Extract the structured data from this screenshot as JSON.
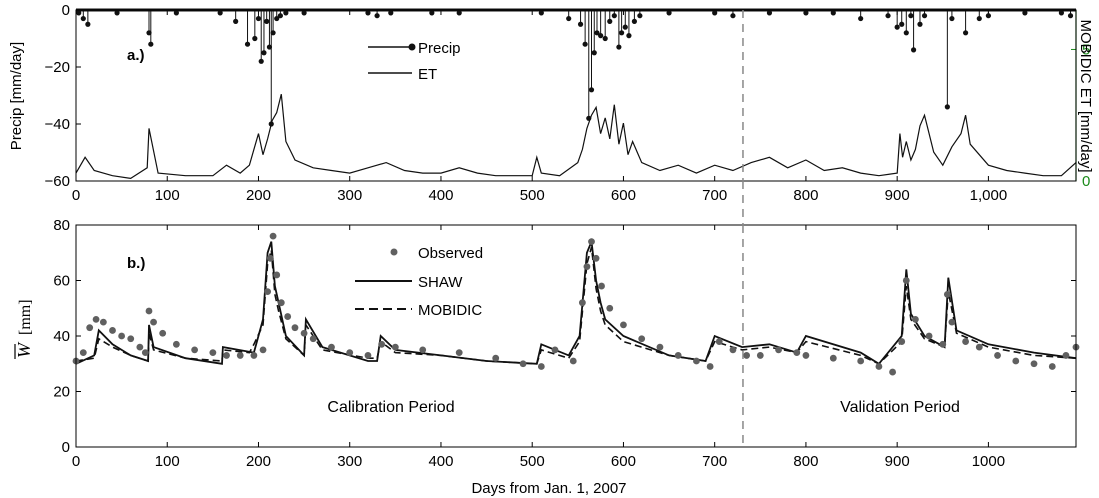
{
  "colors": {
    "axis": "#000000",
    "line": "#111111",
    "observed": "#606060",
    "right_axis": "#1a8a1a",
    "divider": "#888888"
  },
  "chart_data": [
    {
      "panel": "a.)",
      "type": "line",
      "xlim": [
        0,
        1096
      ],
      "ylim_left": [
        -60,
        0
      ],
      "ylim_right": [
        0,
        6.5
      ],
      "ylabel_left": "Precip [mm/day]",
      "ylabel_right": "MOBIDIC ET [mm/day]",
      "x_ticks": [
        0,
        100,
        200,
        300,
        400,
        500,
        600,
        700,
        800,
        900,
        1000
      ],
      "x_tick_labels": [
        "0",
        "100",
        "200",
        "300",
        "400",
        "500",
        "600",
        "700",
        "800",
        "900",
        "1,000"
      ],
      "y_ticks_left": [
        0,
        -20,
        -40,
        -60
      ],
      "y_tick_labels_left": [
        "0",
        "−20",
        "−40",
        "−60"
      ],
      "y_ticks_right": [
        0,
        5
      ],
      "y_tick_labels_right": [
        "0",
        "5"
      ],
      "legend": [
        {
          "label": "Precip",
          "marker": "dot-line"
        },
        {
          "label": "ET",
          "marker": "line"
        }
      ],
      "series": [
        {
          "name": "Precip",
          "axis": "left",
          "x": [
            3,
            8,
            13,
            45,
            80,
            82,
            110,
            158,
            175,
            188,
            196,
            200,
            203,
            206,
            209,
            212,
            214,
            216,
            220,
            224,
            230,
            250,
            320,
            330,
            345,
            390,
            420,
            510,
            540,
            553,
            558,
            562,
            565,
            568,
            571,
            575,
            580,
            585,
            590,
            595,
            598,
            602,
            606,
            612,
            618,
            650,
            700,
            720,
            760,
            800,
            830,
            860,
            890,
            900,
            905,
            910,
            915,
            918,
            925,
            930,
            955,
            960,
            975,
            990,
            1000,
            1040,
            1080,
            1090
          ],
          "y": [
            -1,
            -3,
            -5,
            -1,
            -8,
            -12,
            -1,
            -1,
            -4,
            -12,
            -10,
            -3,
            -18,
            -15,
            -4,
            -13,
            -40,
            -8,
            -3,
            -2,
            -1,
            -1,
            -1,
            -2,
            -1,
            -1,
            -1,
            -1,
            -3,
            -5,
            -12,
            -38,
            -28,
            -15,
            -8,
            -9,
            -10,
            -4,
            -2,
            -13,
            -8,
            -6,
            -9,
            -4,
            -2,
            -1,
            -1,
            -2,
            -1,
            -1,
            -1,
            -3,
            -2,
            -6,
            -5,
            -8,
            -2,
            -14,
            -5,
            -2,
            -34,
            -3,
            -8,
            -3,
            -2,
            -1,
            -1,
            -2
          ]
        },
        {
          "name": "ET",
          "axis": "right",
          "x": [
            0,
            10,
            20,
            40,
            60,
            78,
            80,
            90,
            120,
            150,
            165,
            180,
            190,
            195,
            200,
            205,
            210,
            215,
            220,
            225,
            230,
            240,
            260,
            280,
            300,
            320,
            340,
            360,
            380,
            400,
            420,
            440,
            460,
            480,
            500,
            505,
            510,
            530,
            550,
            555,
            560,
            565,
            570,
            575,
            580,
            585,
            590,
            595,
            600,
            605,
            610,
            620,
            640,
            660,
            680,
            700,
            720,
            740,
            760,
            780,
            800,
            820,
            840,
            860,
            880,
            900,
            903,
            906,
            910,
            915,
            920,
            925,
            930,
            940,
            950,
            960,
            970,
            975,
            980,
            1000,
            1020,
            1040,
            1060,
            1080,
            1096
          ],
          "y": [
            0.3,
            0.9,
            0.4,
            0.2,
            0.1,
            0.5,
            2.0,
            0.3,
            0.2,
            0.2,
            0.6,
            0.3,
            0.6,
            1.2,
            1.8,
            1.0,
            1.6,
            2.3,
            2.6,
            3.3,
            1.5,
            0.8,
            0.5,
            0.4,
            0.3,
            0.5,
            0.7,
            0.4,
            0.3,
            0.3,
            0.5,
            0.3,
            0.2,
            0.2,
            0.2,
            0.9,
            0.3,
            0.2,
            0.7,
            1.2,
            2.0,
            2.5,
            2.8,
            1.8,
            2.4,
            1.6,
            2.9,
            1.4,
            2.2,
            1.0,
            1.5,
            0.7,
            0.4,
            0.6,
            0.3,
            0.6,
            0.4,
            0.7,
            0.9,
            0.5,
            0.8,
            0.4,
            0.5,
            0.3,
            0.2,
            0.3,
            1.8,
            0.9,
            1.5,
            0.8,
            1.2,
            2.1,
            2.5,
            1.1,
            0.6,
            1.3,
            1.8,
            2.5,
            1.4,
            0.6,
            0.4,
            0.3,
            0.2,
            0.2,
            0.7
          ]
        }
      ]
    },
    {
      "panel": "b.)",
      "type": "line",
      "xlim": [
        0,
        1096
      ],
      "ylim": [
        0,
        80
      ],
      "xlabel": "Days from Jan. 1, 2007",
      "ylabel": "W [mm]",
      "x_ticks": [
        0,
        100,
        200,
        300,
        400,
        500,
        600,
        700,
        800,
        900,
        1000
      ],
      "x_tick_labels": [
        "0",
        "100",
        "200",
        "300",
        "400",
        "500",
        "600",
        "700",
        "800",
        "900",
        "1000"
      ],
      "y_ticks": [
        0,
        20,
        40,
        60,
        80
      ],
      "y_tick_labels": [
        "0",
        "20",
        "40",
        "60",
        "80"
      ],
      "divider_x": 731,
      "annotations": [
        "Calibration Period",
        "Validation Period"
      ],
      "legend": [
        {
          "label": "Observed",
          "marker": "dot"
        },
        {
          "label": "SHAW",
          "marker": "line"
        },
        {
          "label": "MOBIDIC",
          "marker": "dashed"
        }
      ],
      "series": [
        {
          "name": "Observed",
          "x": [
            0,
            8,
            15,
            22,
            30,
            40,
            50,
            60,
            70,
            76,
            80,
            85,
            95,
            110,
            130,
            150,
            165,
            180,
            195,
            205,
            210,
            213,
            216,
            220,
            225,
            232,
            240,
            250,
            260,
            280,
            300,
            320,
            335,
            350,
            380,
            420,
            460,
            490,
            510,
            525,
            545,
            555,
            560,
            565,
            570,
            576,
            585,
            600,
            620,
            640,
            660,
            680,
            695,
            705,
            720,
            735,
            750,
            770,
            790,
            800,
            830,
            860,
            880,
            895,
            905,
            910,
            920,
            935,
            950,
            955,
            960,
            975,
            990,
            1010,
            1030,
            1050,
            1070,
            1085,
            1096
          ],
          "y": [
            31,
            34,
            43,
            46,
            45,
            42,
            40,
            39,
            36,
            34,
            49,
            45,
            41,
            37,
            35,
            34,
            33,
            33,
            33,
            35,
            56,
            68,
            76,
            62,
            52,
            47,
            43,
            41,
            39,
            36,
            34,
            33,
            37,
            36,
            35,
            34,
            32,
            30,
            29,
            35,
            31,
            52,
            65,
            74,
            68,
            58,
            50,
            44,
            39,
            36,
            33,
            31,
            29,
            38,
            35,
            33,
            33,
            35,
            34,
            33,
            32,
            31,
            29,
            27,
            38,
            60,
            46,
            40,
            37,
            55,
            45,
            38,
            36,
            33,
            31,
            30,
            29,
            33,
            36
          ]
        },
        {
          "name": "SHAW",
          "x": [
            0,
            20,
            25,
            40,
            60,
            79,
            80,
            85,
            120,
            160,
            161,
            195,
            205,
            210,
            214,
            218,
            222,
            230,
            250,
            252,
            270,
            320,
            330,
            334,
            350,
            400,
            450,
            505,
            510,
            540,
            552,
            560,
            565,
            570,
            575,
            580,
            600,
            650,
            690,
            700,
            730,
            760,
            790,
            800,
            860,
            880,
            905,
            910,
            915,
            930,
            952,
            956,
            965,
            1000,
            1050,
            1096
          ],
          "y": [
            30,
            33,
            42,
            37,
            33,
            31,
            44,
            36,
            32,
            30,
            36,
            34,
            46,
            70,
            74,
            58,
            52,
            40,
            33,
            46,
            36,
            31,
            31,
            40,
            35,
            33,
            31,
            30,
            37,
            33,
            40,
            70,
            74,
            60,
            52,
            46,
            40,
            33,
            31,
            40,
            36,
            37,
            34,
            40,
            34,
            30,
            40,
            64,
            48,
            40,
            36,
            61,
            42,
            37,
            34,
            32
          ]
        },
        {
          "name": "MOBIDIC",
          "x": [
            0,
            20,
            25,
            40,
            60,
            79,
            80,
            85,
            120,
            160,
            161,
            190,
            195,
            205,
            210,
            214,
            218,
            222,
            230,
            250,
            252,
            270,
            320,
            330,
            334,
            350,
            400,
            450,
            505,
            510,
            540,
            552,
            560,
            565,
            570,
            575,
            580,
            600,
            650,
            690,
            700,
            730,
            760,
            790,
            800,
            860,
            880,
            905,
            910,
            915,
            930,
            952,
            956,
            965,
            1000,
            1050,
            1096
          ],
          "y": [
            31,
            32,
            39,
            36,
            33,
            31,
            41,
            35,
            32,
            31,
            35,
            34,
            37,
            44,
            66,
            71,
            55,
            49,
            39,
            33,
            44,
            35,
            32,
            32,
            38,
            34,
            33,
            31,
            30,
            35,
            32,
            38,
            66,
            72,
            57,
            49,
            44,
            38,
            33,
            31,
            38,
            35,
            36,
            34,
            38,
            33,
            30,
            38,
            58,
            46,
            39,
            36,
            56,
            41,
            36,
            33,
            32
          ]
        }
      ]
    }
  ]
}
